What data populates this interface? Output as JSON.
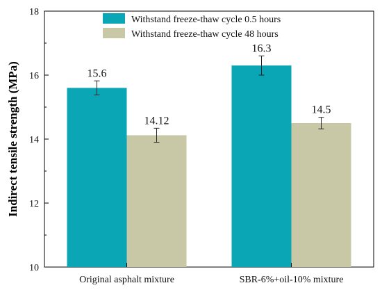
{
  "chart_data": {
    "type": "bar",
    "title": "",
    "xlabel": "",
    "ylabel": "Indirect tensile strength (MPa)",
    "ylim": [
      10,
      18
    ],
    "yticks": [
      "10",
      "12",
      "14",
      "16",
      "18"
    ],
    "categories": [
      "Original asphalt mixture",
      "SBR-6%+oil-10% mixture"
    ],
    "legend_position": "top-center",
    "grid": false,
    "series": [
      {
        "name": "Withstand freeze-thaw cycle 0.5 hours",
        "color": "#0aa6b5",
        "values": [
          15.6,
          16.3
        ],
        "labels": [
          "15.6",
          "16.3"
        ],
        "errors": [
          0.22,
          0.3
        ]
      },
      {
        "name": "Withstand freeze-thaw cycle 48 hours",
        "color": "#c8c7a6",
        "values": [
          14.12,
          14.5
        ],
        "labels": [
          "14.12",
          "14.5"
        ],
        "errors": [
          0.22,
          0.18
        ]
      }
    ]
  }
}
